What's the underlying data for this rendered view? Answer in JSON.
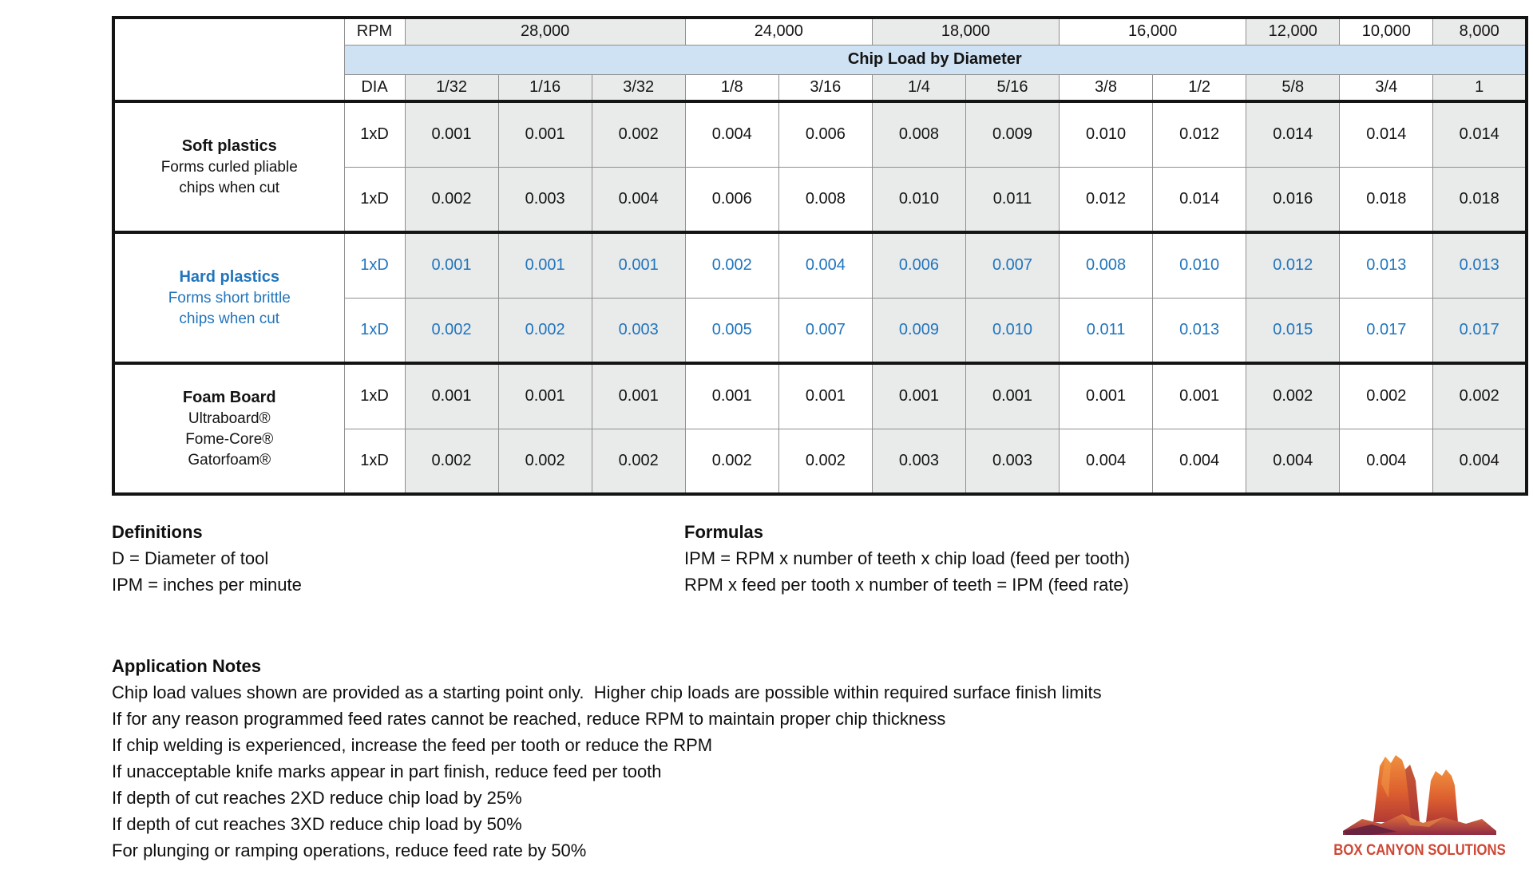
{
  "table": {
    "rpm_label": "RPM",
    "dia_label": "DIA",
    "banner": "Chip Load by Diameter",
    "rpm_groups": [
      {
        "label": "28,000",
        "span": 3,
        "shaded": true
      },
      {
        "label": "24,000",
        "span": 2,
        "shaded": false
      },
      {
        "label": "18,000",
        "span": 2,
        "shaded": true
      },
      {
        "label": "16,000",
        "span": 2,
        "shaded": false
      },
      {
        "label": "12,000",
        "span": 1,
        "shaded": true
      },
      {
        "label": "10,000",
        "span": 1,
        "shaded": false
      },
      {
        "label": "8,000",
        "span": 1,
        "shaded": true
      }
    ],
    "diameters": [
      "1/32",
      "1/16",
      "3/32",
      "1/8",
      "3/16",
      "1/4",
      "5/16",
      "3/8",
      "1/2",
      "5/8",
      "3/4",
      "1"
    ],
    "column_shaded": [
      true,
      true,
      true,
      false,
      false,
      true,
      true,
      false,
      false,
      true,
      false,
      true
    ],
    "materials": [
      {
        "name": "Soft plastics",
        "description_lines": [
          "Forms curled pliable",
          "chips when cut"
        ],
        "text_color": "#141414",
        "rows": [
          {
            "depth": "1xD",
            "values": [
              "0.001",
              "0.001",
              "0.002",
              "0.004",
              "0.006",
              "0.008",
              "0.009",
              "0.010",
              "0.012",
              "0.014",
              "0.014",
              "0.014"
            ]
          },
          {
            "depth": "1xD",
            "values": [
              "0.002",
              "0.003",
              "0.004",
              "0.006",
              "0.008",
              "0.010",
              "0.011",
              "0.012",
              "0.014",
              "0.016",
              "0.018",
              "0.018"
            ]
          }
        ]
      },
      {
        "name": "Hard plastics",
        "description_lines": [
          "Forms short brittle",
          "chips when cut"
        ],
        "text_color": "#2175bc",
        "rows": [
          {
            "depth": "1xD",
            "values": [
              "0.001",
              "0.001",
              "0.001",
              "0.002",
              "0.004",
              "0.006",
              "0.007",
              "0.008",
              "0.010",
              "0.012",
              "0.013",
              "0.013"
            ]
          },
          {
            "depth": "1xD",
            "values": [
              "0.002",
              "0.002",
              "0.003",
              "0.005",
              "0.007",
              "0.009",
              "0.010",
              "0.011",
              "0.013",
              "0.015",
              "0.017",
              "0.017"
            ]
          }
        ]
      },
      {
        "name": "Foam Board",
        "description_lines": [
          "Ultraboard®",
          "Fome-Core®",
          "Gatorfoam®"
        ],
        "text_color": "#141414",
        "rows": [
          {
            "depth": "1xD",
            "values": [
              "0.001",
              "0.001",
              "0.001",
              "0.001",
              "0.001",
              "0.001",
              "0.001",
              "0.001",
              "0.001",
              "0.002",
              "0.002",
              "0.002"
            ]
          },
          {
            "depth": "1xD",
            "values": [
              "0.002",
              "0.002",
              "0.002",
              "0.002",
              "0.002",
              "0.003",
              "0.003",
              "0.004",
              "0.004",
              "0.004",
              "0.004",
              "0.004"
            ]
          }
        ]
      }
    ]
  },
  "definitions": {
    "title": "Definitions",
    "lines": [
      "D = Diameter of tool",
      "IPM = inches per minute"
    ]
  },
  "formulas": {
    "title": "Formulas",
    "lines": [
      "IPM = RPM x number of teeth x chip load (feed per tooth)",
      "RPM x feed per tooth x number of teeth = IPM (feed rate)"
    ]
  },
  "application_notes": {
    "title": "Application Notes",
    "lines": [
      "Chip load values shown are provided as a starting point only.  Higher chip loads are possible within required surface finish limits",
      "If for any reason programmed feed rates cannot be reached, reduce RPM to maintain proper chip thickness",
      "If chip welding is experienced, increase the feed per tooth or reduce the RPM",
      "If unacceptable knife marks appear in part finish, reduce feed per tooth",
      "If depth of cut reaches 2XD reduce chip load by 25%",
      "If depth of cut reaches 3XD reduce chip load by 50%",
      "For plunging or ramping operations, reduce feed rate by 50%"
    ]
  },
  "logo": {
    "text": "BOX CANYON SOLUTIONS"
  },
  "colors": {
    "shaded_cell": "#e9eaea",
    "banner_bg": "#cfe2f3",
    "hard_plastics_blue": "#2175bc",
    "table_border": "#141414",
    "grid_line": "#8f8f8f",
    "logo_red": "#cf4734"
  }
}
